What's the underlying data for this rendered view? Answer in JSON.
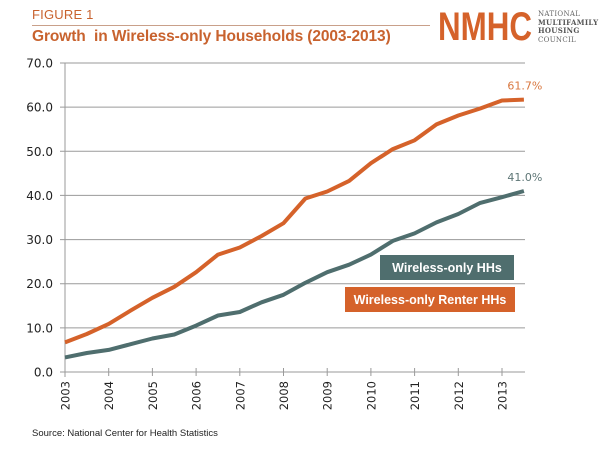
{
  "header": {
    "figure_label": "FIGURE 1",
    "logo_mark": "NMHC",
    "logo_lines": [
      "NATIONAL",
      "MULTIFAMILY",
      "HOUSING",
      "COUNCIL"
    ]
  },
  "footer": {
    "source": "Source: National Center for Health Statistics"
  },
  "colors": {
    "brand_orange": "#D5622A",
    "series_gray": "#4F6E6E",
    "grid": "#9a9a9a"
  },
  "chart_data": {
    "type": "line",
    "title": "Growth  in Wireless-only Households (2003-2013)",
    "xlabel": "",
    "ylabel": "",
    "ylim": [
      0,
      70
    ],
    "xlim": [
      2003,
      2013.5
    ],
    "y_ticks": [
      "0.0",
      "10.0",
      "20.0",
      "30.0",
      "40.0",
      "50.0",
      "60.0",
      "70.0"
    ],
    "y_tick_values": [
      0,
      10,
      20,
      30,
      40,
      50,
      60,
      70
    ],
    "x_ticks": [
      "2003",
      "2004",
      "2005",
      "2006",
      "2007",
      "2008",
      "2009",
      "2010",
      "2011",
      "2012",
      "2013"
    ],
    "x_tick_values": [
      2003,
      2004,
      2005,
      2006,
      2007,
      2008,
      2009,
      2010,
      2011,
      2012,
      2013
    ],
    "grid": "horizontal",
    "legend_placement": "bottom-right",
    "x": [
      2003,
      2003.5,
      2004,
      2004.5,
      2005,
      2005.5,
      2006,
      2006.5,
      2007,
      2007.5,
      2008,
      2008.5,
      2009,
      2009.5,
      2010,
      2010.5,
      2011,
      2011.5,
      2012,
      2012.5,
      2013,
      2013.5
    ],
    "series": [
      {
        "name": "Wireless-only Renter HHs",
        "color": "#D5622A",
        "end_label": "61.7%",
        "values": [
          6.7,
          8.6,
          10.9,
          13.9,
          16.8,
          19.3,
          22.6,
          26.6,
          28.2,
          30.8,
          33.7,
          39.3,
          40.9,
          43.3,
          47.3,
          50.5,
          52.5,
          56.1,
          58.1,
          59.7,
          61.5,
          61.7
        ]
      },
      {
        "name": "Wireless-only HHs",
        "color": "#4F6E6E",
        "end_label": "41.0%",
        "values": [
          3.3,
          4.3,
          5.0,
          6.3,
          7.6,
          8.5,
          10.5,
          12.8,
          13.6,
          15.8,
          17.5,
          20.2,
          22.6,
          24.3,
          26.6,
          29.7,
          31.4,
          33.9,
          35.8,
          38.3,
          39.6,
          41.0
        ]
      }
    ]
  }
}
